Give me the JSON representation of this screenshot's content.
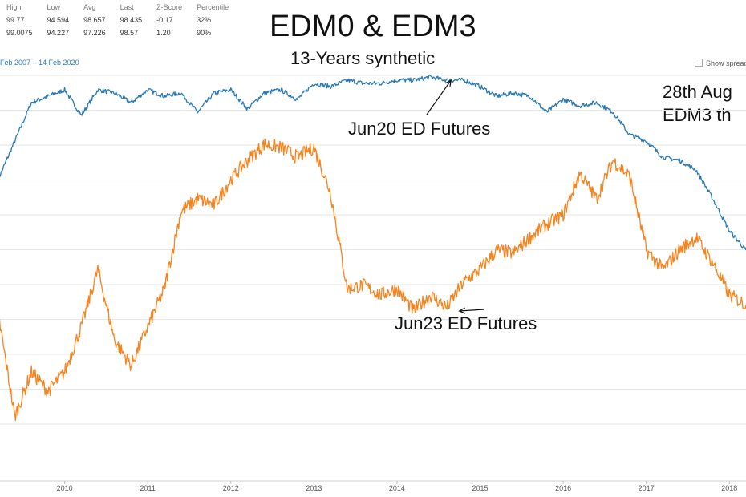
{
  "stats": {
    "headers": [
      "High",
      "Low",
      "Avg",
      "Last",
      "Z-Score",
      "Percentile"
    ],
    "rows": [
      [
        "99.77",
        "94.594",
        "98.657",
        "98.435",
        "-0.17",
        "32%"
      ],
      [
        "99.0075",
        "94.227",
        "97.226",
        "98.57",
        "1.20",
        "90%"
      ]
    ]
  },
  "date_range": "Feb 2007  – 14 Feb 2020",
  "show_spread_label": "Show spread",
  "note_lines": [
    "28th Aug",
    "EDM3 th"
  ],
  "chart_data": {
    "type": "line",
    "title": "EDM0 & EDM3",
    "subtitle": "13-Years synthetic",
    "x_ticks": [
      "2010",
      "2011",
      "2012",
      "2013",
      "2014",
      "2015",
      "2016",
      "2017",
      "2018"
    ],
    "grid": true,
    "series": [
      {
        "name": "Jun20 ED Futures",
        "color": "#2878b4",
        "x": [
          2009.2,
          2009.4,
          2009.6,
          2009.8,
          2010.0,
          2010.2,
          2010.4,
          2010.6,
          2010.8,
          2011.0,
          2011.2,
          2011.4,
          2011.6,
          2011.8,
          2012.0,
          2012.2,
          2012.4,
          2012.6,
          2012.8,
          2013.0,
          2013.2,
          2013.4,
          2013.6,
          2013.8,
          2014.0,
          2014.2,
          2014.4,
          2014.6,
          2014.8,
          2015.0,
          2015.2,
          2015.4,
          2015.6,
          2015.8,
          2016.0,
          2016.2,
          2016.4,
          2016.6,
          2016.8,
          2017.0,
          2017.2,
          2017.4,
          2017.6,
          2017.8,
          2018.0,
          2018.2
        ],
        "values": [
          98.3,
          98.9,
          99.5,
          99.6,
          99.7,
          99.3,
          99.7,
          99.65,
          99.5,
          99.7,
          99.6,
          99.65,
          99.35,
          99.65,
          99.7,
          99.4,
          99.65,
          99.7,
          99.55,
          99.8,
          99.75,
          99.85,
          99.8,
          99.8,
          99.85,
          99.85,
          99.9,
          99.85,
          99.85,
          99.75,
          99.6,
          99.65,
          99.6,
          99.35,
          99.55,
          99.45,
          99.5,
          99.35,
          99.0,
          98.9,
          98.65,
          98.6,
          98.45,
          98.0,
          97.5,
          97.2
        ]
      },
      {
        "name": "Jun23 ED Futures",
        "color": "#f5841f",
        "x": [
          2009.2,
          2009.4,
          2009.6,
          2009.8,
          2010.0,
          2010.2,
          2010.4,
          2010.6,
          2010.8,
          2011.0,
          2011.2,
          2011.4,
          2011.6,
          2011.8,
          2012.0,
          2012.2,
          2012.4,
          2012.6,
          2012.8,
          2013.0,
          2013.2,
          2013.4,
          2013.6,
          2013.8,
          2014.0,
          2014.2,
          2014.4,
          2014.6,
          2014.8,
          2015.0,
          2015.2,
          2015.4,
          2015.6,
          2015.8,
          2016.0,
          2016.2,
          2016.4,
          2016.6,
          2016.8,
          2017.0,
          2017.2,
          2017.4,
          2017.6,
          2017.8,
          2018.0,
          2018.2
        ],
        "values": [
          96.2,
          94.6,
          95.3,
          95.0,
          95.3,
          96.0,
          96.9,
          95.8,
          95.4,
          96.0,
          96.6,
          97.8,
          98.0,
          97.9,
          98.3,
          98.6,
          98.85,
          98.8,
          98.65,
          98.8,
          98.1,
          96.6,
          96.65,
          96.5,
          96.6,
          96.25,
          96.5,
          96.3,
          96.7,
          96.9,
          97.2,
          97.15,
          97.4,
          97.6,
          97.75,
          98.4,
          98.0,
          98.6,
          98.35,
          97.2,
          96.9,
          97.2,
          97.4,
          97.0,
          96.5,
          96.35
        ]
      }
    ],
    "annotations": [
      {
        "text": "Jun20 ED Futures",
        "x": 2014.65,
        "y": 99.85
      },
      {
        "text": "Jun23 ED Futures",
        "x": 2014.75,
        "y": 96.25
      }
    ]
  }
}
